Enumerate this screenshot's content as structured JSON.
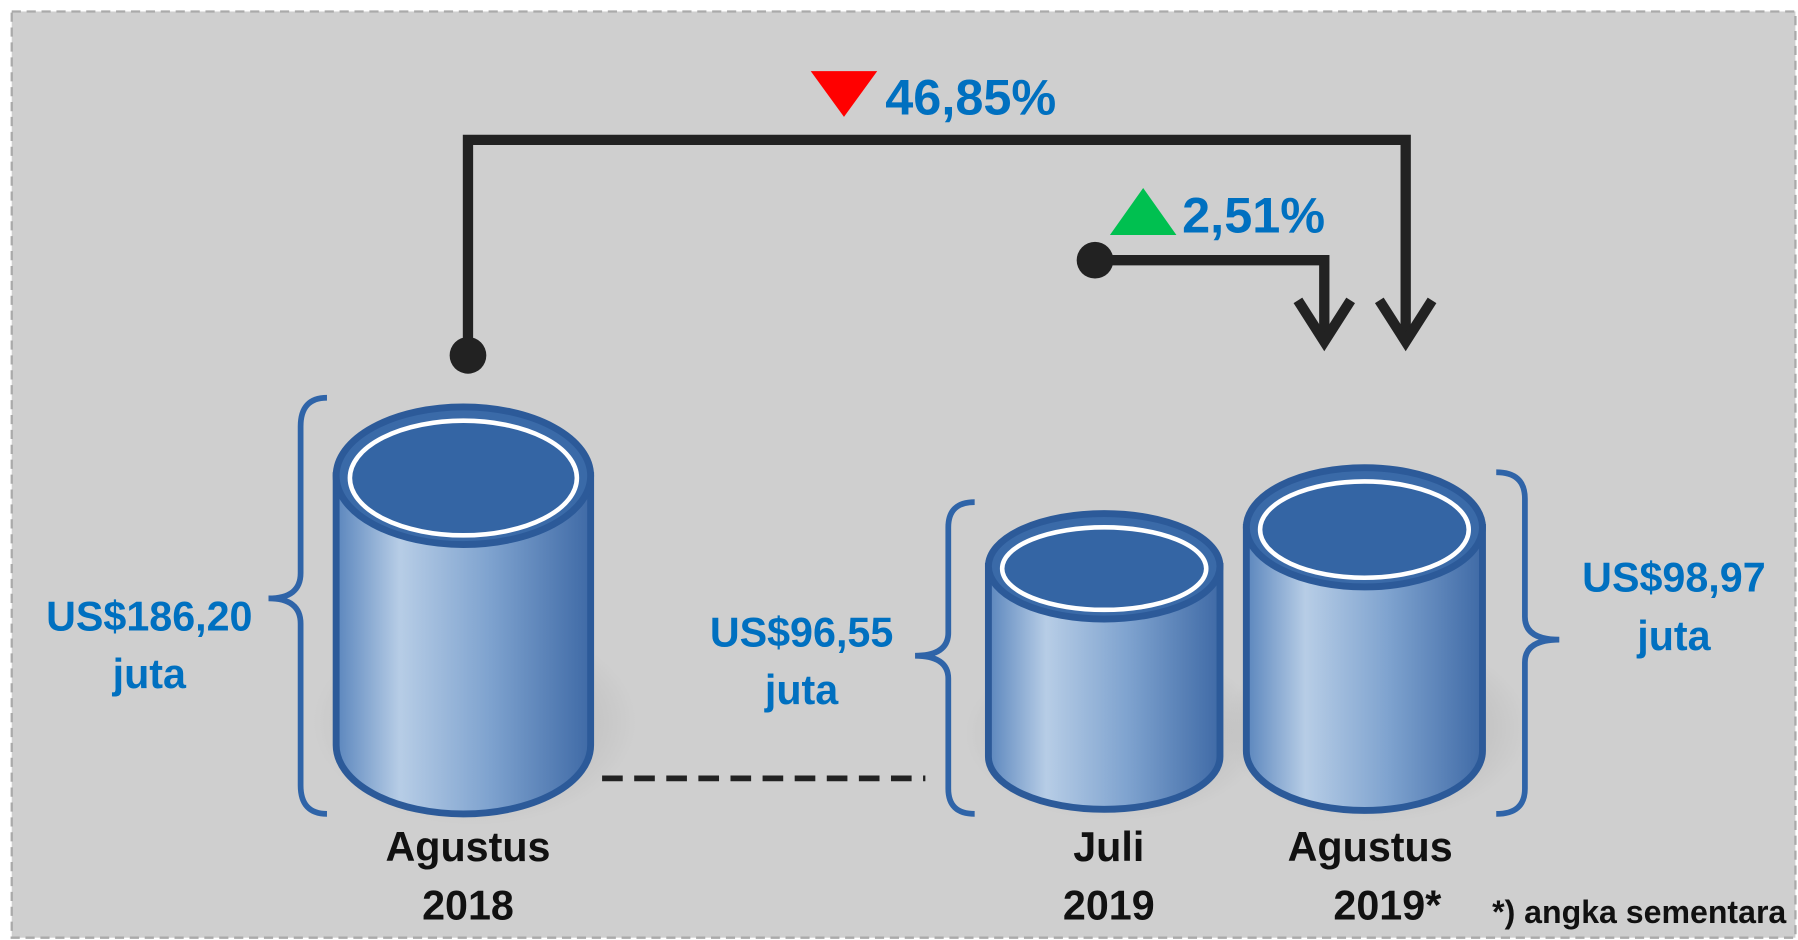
{
  "items": [
    {
      "label": [
        "Agustus",
        "2018"
      ],
      "value": [
        "US$186,20",
        "juta"
      ]
    },
    {
      "label": [
        "Juli",
        "2019"
      ],
      "value": [
        "US$96,55",
        "juta"
      ]
    },
    {
      "label": [
        "Agustus",
        "2019*"
      ],
      "value": [
        "US$98,97",
        "juta"
      ]
    }
  ],
  "changes": [
    {
      "value": "46,85%"
    },
    {
      "value": "2,51%"
    }
  ],
  "footnote": "*) angka sementara"
}
